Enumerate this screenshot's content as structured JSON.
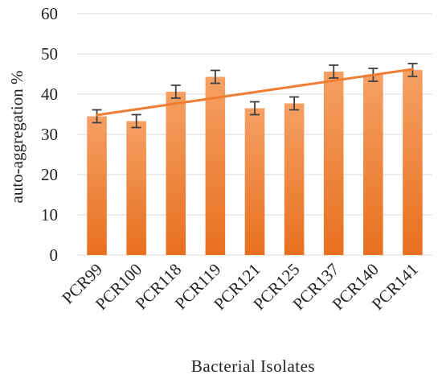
{
  "chart_data": {
    "type": "bar",
    "categories": [
      "PCR99",
      "PCR100",
      "PCR118",
      "PCR119",
      "PCR121",
      "PCR125",
      "PCR137",
      "PCR140",
      "PCR141"
    ],
    "values": [
      34.5,
      33.3,
      40.6,
      44.3,
      36.5,
      37.7,
      45.6,
      44.8,
      46.0
    ],
    "error": [
      1.6,
      1.6,
      1.6,
      1.6,
      1.6,
      1.6,
      1.6,
      1.6,
      1.6
    ],
    "trendline": {
      "start": 34.8,
      "end": 46.2,
      "type": "linear"
    },
    "xlabel": "Bacterial Isolates",
    "ylabel": "auto-aggregation %",
    "ylim": [
      0,
      60
    ],
    "yticks": [
      "0",
      "10",
      "20",
      "30",
      "40",
      "50",
      "60"
    ],
    "grid": true,
    "legend": "none",
    "colors": {
      "bar_top": "#f5a064",
      "bar_bottom": "#e8701f",
      "trendline": "#ef7d34",
      "error_bar": "#404040",
      "grid": "#d9d9d9"
    }
  }
}
